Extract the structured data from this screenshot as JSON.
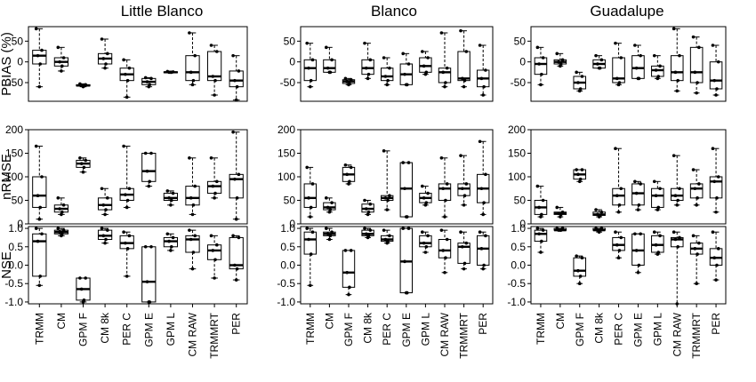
{
  "chart_data": {
    "type": "boxplot",
    "columns": [
      "Little Blanco",
      "Blanco",
      "Guadalupe"
    ],
    "categories": [
      "TRMM",
      "CM",
      "GPM F",
      "CM 8k",
      "PER C",
      "GPM E",
      "GPM L",
      "CM RAW",
      "TRMMRT",
      "PER"
    ],
    "rows": [
      {
        "ylabel": "PBIAS (%)",
        "ylim": [
          -95,
          85
        ],
        "ticks": [
          -50,
          0,
          50
        ],
        "panels": [
          [
            [
              -60,
              -5,
              15,
              28,
              80
            ],
            [
              -22,
              -10,
              0,
              10,
              35
            ],
            [
              -60,
              -58,
              -57,
              -55,
              -53
            ],
            [
              -15,
              -5,
              8,
              20,
              55
            ],
            [
              -85,
              -45,
              -30,
              -15,
              5
            ],
            [
              -60,
              -55,
              -48,
              -40,
              -38
            ],
            [
              -25,
              -25,
              -25,
              -24,
              -23
            ],
            [
              -55,
              -45,
              -25,
              15,
              70
            ],
            [
              -80,
              -45,
              -35,
              25,
              40
            ],
            [
              -92,
              -60,
              -45,
              -22,
              15
            ]
          ],
          [
            [
              -60,
              -45,
              -15,
              5,
              45
            ],
            [
              -25,
              -25,
              -15,
              5,
              35
            ],
            [
              -55,
              -52,
              -47,
              -43,
              -40
            ],
            [
              -40,
              -30,
              -15,
              5,
              45
            ],
            [
              -55,
              -45,
              -35,
              -15,
              10
            ],
            [
              -55,
              -55,
              -30,
              -5,
              20
            ],
            [
              -30,
              -25,
              -10,
              10,
              25
            ],
            [
              -60,
              -50,
              -25,
              -15,
              70
            ],
            [
              -60,
              -45,
              -40,
              25,
              75
            ],
            [
              -80,
              -60,
              -40,
              -20,
              40
            ]
          ],
          [
            [
              -55,
              -30,
              -5,
              10,
              35
            ],
            [
              -10,
              -5,
              0,
              5,
              20
            ],
            [
              -70,
              -65,
              -50,
              -35,
              -25
            ],
            [
              -15,
              -15,
              -5,
              5,
              15
            ],
            [
              -55,
              -50,
              -40,
              10,
              45
            ],
            [
              -40,
              -40,
              -15,
              15,
              40
            ],
            [
              -40,
              -35,
              -20,
              -10,
              15
            ],
            [
              -70,
              -45,
              -25,
              15,
              80
            ],
            [
              -75,
              -50,
              -25,
              35,
              60
            ],
            [
              -80,
              -65,
              -45,
              0,
              40
            ]
          ]
        ]
      },
      {
        "ylabel": "nRMSE",
        "ylim": [
          0,
          200
        ],
        "ticks": [
          0,
          50,
          100,
          150,
          200
        ],
        "panels": [
          [
            [
              10,
              35,
              60,
              100,
              165
            ],
            [
              20,
              25,
              32,
              40,
              55
            ],
            [
              110,
              120,
              128,
              135,
              140
            ],
            [
              20,
              30,
              40,
              55,
              75
            ],
            [
              35,
              50,
              62,
              75,
              165
            ],
            [
              80,
              90,
              112,
              150,
              150
            ],
            [
              40,
              50,
              55,
              65,
              70
            ],
            [
              20,
              40,
              55,
              80,
              140
            ],
            [
              55,
              65,
              80,
              90,
              140
            ],
            [
              10,
              55,
              95,
              105,
              195
            ]
          ],
          [
            [
              15,
              35,
              55,
              85,
              120
            ],
            [
              25,
              30,
              35,
              45,
              55
            ],
            [
              85,
              90,
              105,
              120,
              125
            ],
            [
              20,
              25,
              32,
              42,
              50
            ],
            [
              30,
              50,
              55,
              60,
              155
            ],
            [
              15,
              15,
              75,
              130,
              130
            ],
            [
              40,
              45,
              55,
              65,
              80
            ],
            [
              15,
              50,
              75,
              85,
              140
            ],
            [
              40,
              60,
              75,
              85,
              145
            ],
            [
              20,
              45,
              75,
              105,
              175
            ]
          ],
          [
            [
              15,
              20,
              35,
              50,
              80
            ],
            [
              15,
              20,
              22,
              25,
              35
            ],
            [
              90,
              95,
              105,
              115,
              115
            ],
            [
              15,
              18,
              20,
              25,
              30
            ],
            [
              25,
              40,
              60,
              75,
              160
            ],
            [
              30,
              40,
              65,
              85,
              90
            ],
            [
              30,
              35,
              60,
              75,
              90
            ],
            [
              40,
              50,
              60,
              75,
              145
            ],
            [
              40,
              55,
              75,
              85,
              115
            ],
            [
              25,
              55,
              90,
              100,
              160
            ]
          ]
        ]
      },
      {
        "ylabel": "NSE",
        "ylim": [
          -1.05,
          1.05
        ],
        "ticks": [
          -1.0,
          -0.5,
          0.0,
          0.5,
          1.0
        ],
        "panels": [
          [
            [
              -0.55,
              -0.3,
              0.65,
              0.85,
              1.0
            ],
            [
              0.8,
              0.85,
              0.9,
              0.95,
              1.0
            ],
            [
              -1.0,
              -0.95,
              -0.65,
              -0.35,
              -0.35
            ],
            [
              0.6,
              0.7,
              0.8,
              0.95,
              1.0
            ],
            [
              -0.3,
              0.45,
              0.6,
              0.8,
              0.9
            ],
            [
              -1.0,
              -1.0,
              -0.45,
              0.5,
              0.5
            ],
            [
              0.4,
              0.5,
              0.65,
              0.75,
              0.85
            ],
            [
              -0.1,
              0.35,
              0.7,
              0.8,
              0.95
            ],
            [
              -0.35,
              0.15,
              0.4,
              0.55,
              0.8
            ],
            [
              -0.4,
              -0.1,
              0.0,
              0.75,
              0.8
            ]
          ],
          [
            [
              -0.55,
              0.3,
              0.7,
              0.9,
              1.0
            ],
            [
              0.7,
              0.8,
              0.85,
              0.9,
              1.0
            ],
            [
              -0.8,
              -0.6,
              -0.2,
              0.4,
              0.4
            ],
            [
              0.75,
              0.8,
              0.85,
              0.95,
              1.0
            ],
            [
              0.6,
              0.65,
              0.7,
              0.8,
              0.95
            ],
            [
              -0.75,
              -0.75,
              0.1,
              1.0,
              1.0
            ],
            [
              0.35,
              0.5,
              0.6,
              0.8,
              0.9
            ],
            [
              -0.2,
              0.2,
              0.4,
              0.7,
              0.95
            ],
            [
              -0.1,
              0.05,
              0.5,
              0.6,
              0.9
            ],
            [
              -0.1,
              0.0,
              0.45,
              0.8,
              0.9
            ]
          ],
          [
            [
              0.35,
              0.65,
              0.85,
              0.95,
              1.0
            ],
            [
              0.95,
              0.95,
              0.95,
              1.0,
              1.0
            ],
            [
              -0.5,
              -0.3,
              -0.15,
              0.2,
              0.25
            ],
            [
              0.9,
              0.95,
              0.95,
              1.0,
              1.0
            ],
            [
              0.2,
              0.4,
              0.55,
              0.75,
              0.9
            ],
            [
              -0.2,
              0.0,
              0.4,
              0.85,
              0.85
            ],
            [
              0.3,
              0.35,
              0.55,
              0.8,
              0.9
            ],
            [
              -1.05,
              0.5,
              0.7,
              0.75,
              0.9
            ],
            [
              -0.5,
              0.3,
              0.45,
              0.6,
              0.8
            ],
            [
              -0.4,
              0.0,
              0.2,
              0.45,
              0.9
            ]
          ]
        ]
      }
    ]
  }
}
